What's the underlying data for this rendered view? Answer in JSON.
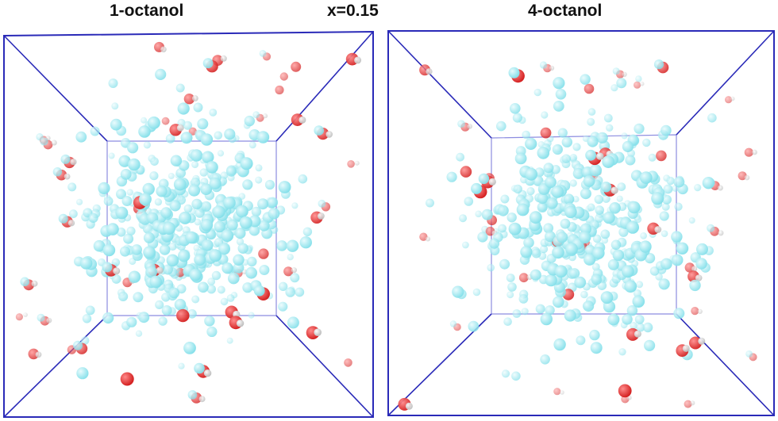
{
  "panels": [
    {
      "title": "1-octanol"
    },
    {
      "title": "4-octanol"
    }
  ],
  "center_label": "x=0.15",
  "colors": {
    "box_edge": "#2a2ab8",
    "inner_box": "#8c8ce0",
    "carbon": "#86e0ea",
    "oxygen": "#d42020",
    "hydrogen": "#f4f4f4",
    "background": "#ffffff"
  }
}
